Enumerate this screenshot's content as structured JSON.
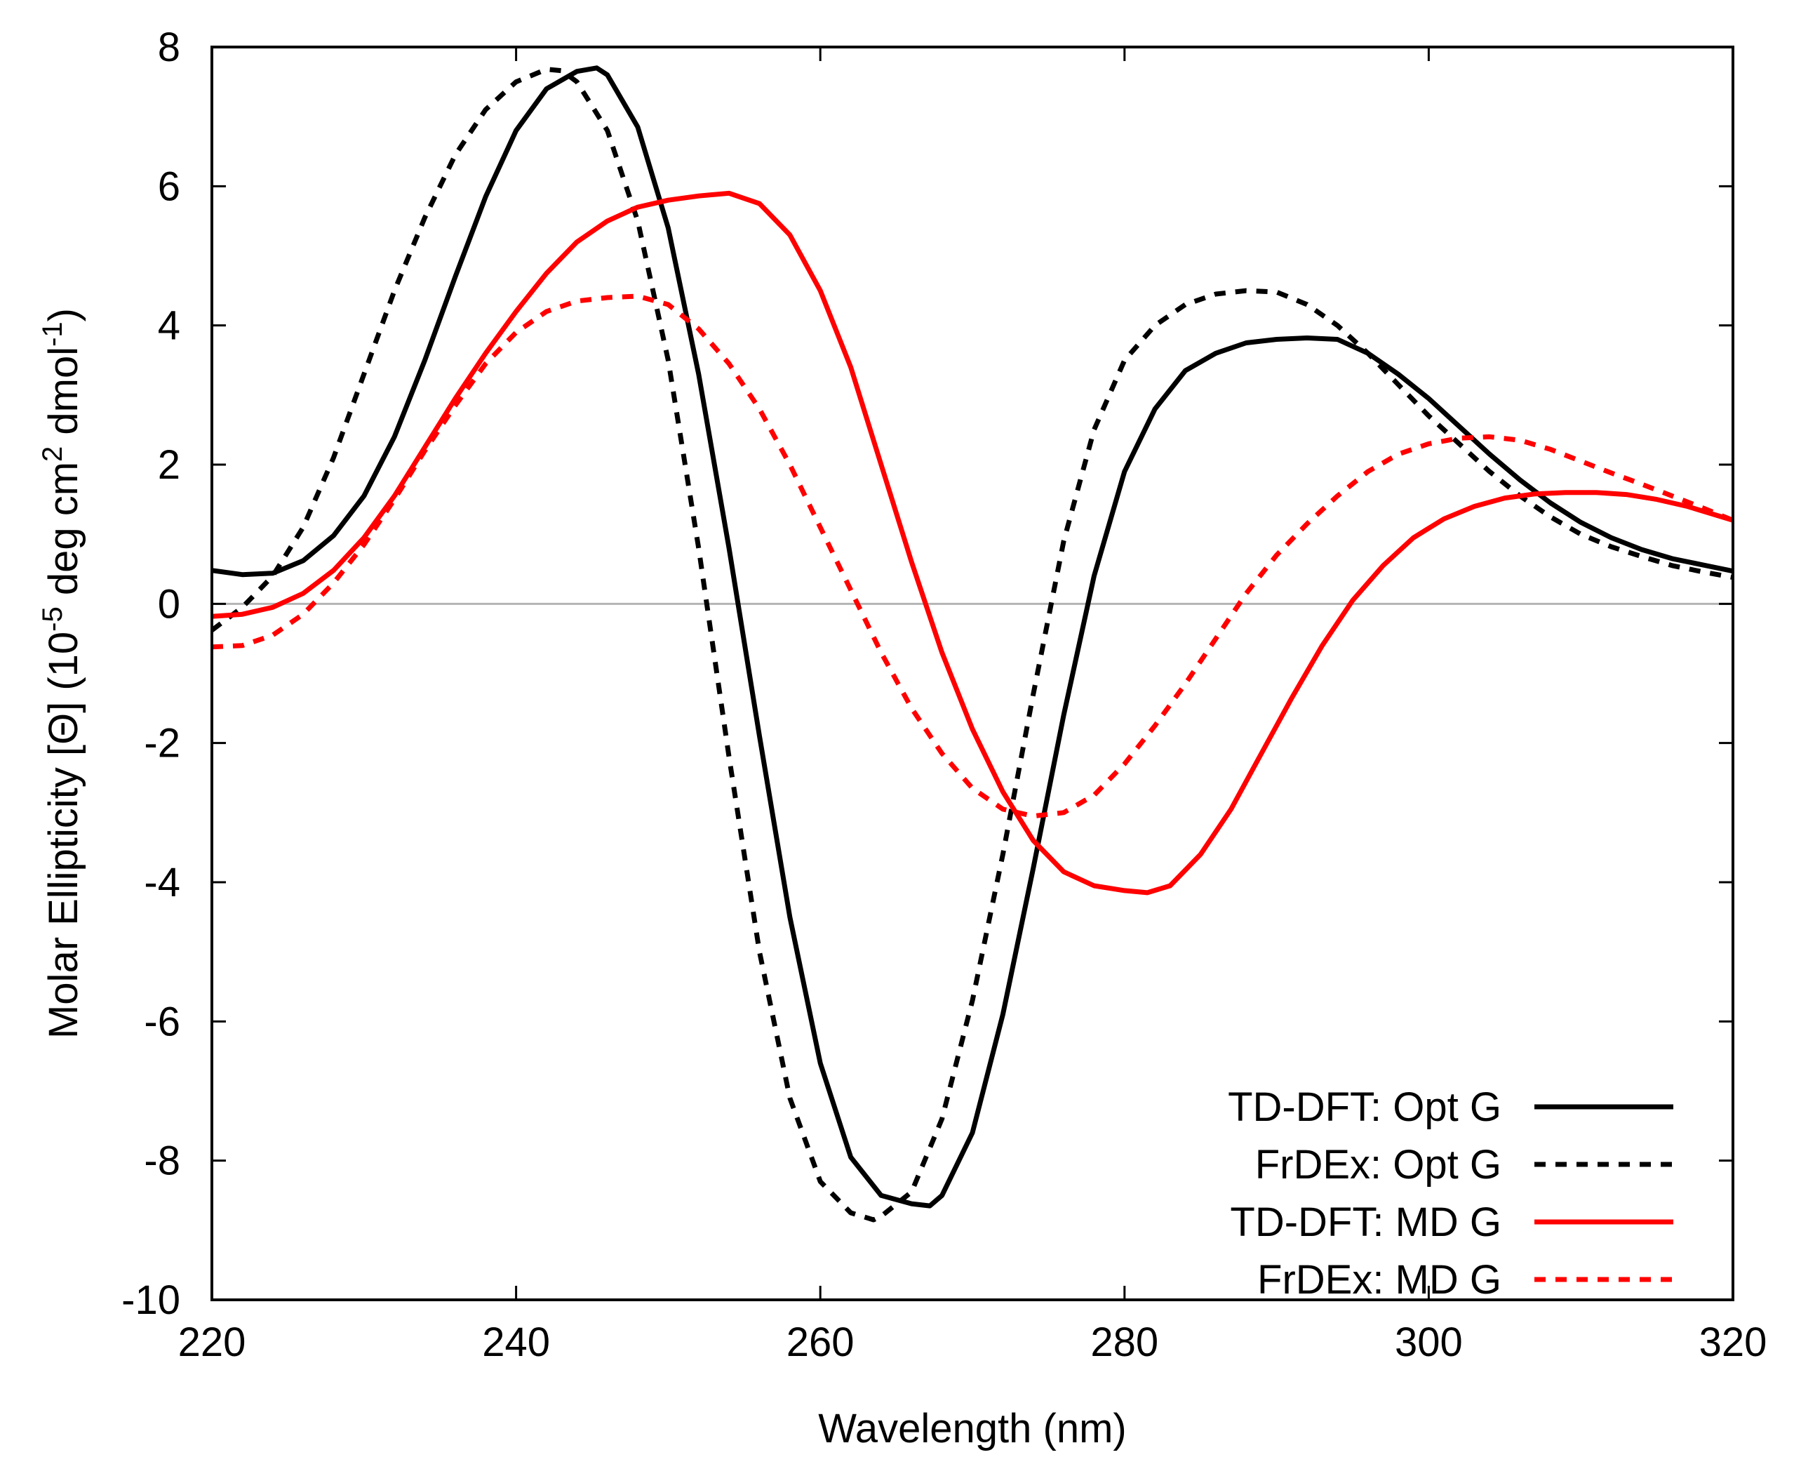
{
  "chart_data": {
    "type": "line",
    "title": "",
    "xlabel": "Wavelength (nm)",
    "ylabel": {
      "parts": [
        {
          "text": "Molar Ellipticity [Θ] (10",
          "sup": false
        },
        {
          "text": "-5",
          "sup": true
        },
        {
          "text": " deg cm",
          "sup": false
        },
        {
          "text": "2",
          "sup": true
        },
        {
          "text": " dmol",
          "sup": false
        },
        {
          "text": "-1",
          "sup": true
        },
        {
          "text": ")",
          "sup": false
        }
      ]
    },
    "xlim": [
      220,
      320
    ],
    "ylim": [
      -10,
      8
    ],
    "xticks": [
      220,
      240,
      260,
      280,
      300,
      320
    ],
    "yticks": [
      -10,
      -8,
      -6,
      -4,
      -2,
      0,
      2,
      4,
      6,
      8
    ],
    "zero_line": true,
    "legend_position": "bottom-right",
    "series": [
      {
        "name": "TD-DFT: Opt G",
        "color": "#000000",
        "dash": "solid",
        "points": [
          [
            220,
            0.48
          ],
          [
            222,
            0.42
          ],
          [
            224,
            0.44
          ],
          [
            226,
            0.62
          ],
          [
            228,
            0.98
          ],
          [
            230,
            1.55
          ],
          [
            232,
            2.4
          ],
          [
            234,
            3.5
          ],
          [
            236,
            4.7
          ],
          [
            238,
            5.85
          ],
          [
            240,
            6.8
          ],
          [
            242,
            7.4
          ],
          [
            244,
            7.65
          ],
          [
            245.3,
            7.7
          ],
          [
            246,
            7.6
          ],
          [
            248,
            6.85
          ],
          [
            250,
            5.4
          ],
          [
            252,
            3.3
          ],
          [
            254,
            0.8
          ],
          [
            256,
            -1.9
          ],
          [
            258,
            -4.5
          ],
          [
            260,
            -6.6
          ],
          [
            262,
            -7.95
          ],
          [
            264,
            -8.5
          ],
          [
            266,
            -8.62
          ],
          [
            267.2,
            -8.65
          ],
          [
            268,
            -8.5
          ],
          [
            270,
            -7.6
          ],
          [
            272,
            -5.9
          ],
          [
            274,
            -3.8
          ],
          [
            276,
            -1.6
          ],
          [
            278,
            0.4
          ],
          [
            280,
            1.9
          ],
          [
            282,
            2.8
          ],
          [
            284,
            3.35
          ],
          [
            286,
            3.6
          ],
          [
            288,
            3.75
          ],
          [
            290,
            3.8
          ],
          [
            292,
            3.82
          ],
          [
            294,
            3.8
          ],
          [
            296,
            3.6
          ],
          [
            298,
            3.3
          ],
          [
            300,
            2.95
          ],
          [
            302,
            2.55
          ],
          [
            304,
            2.15
          ],
          [
            306,
            1.78
          ],
          [
            308,
            1.45
          ],
          [
            310,
            1.17
          ],
          [
            312,
            0.95
          ],
          [
            314,
            0.78
          ],
          [
            316,
            0.65
          ],
          [
            318,
            0.56
          ],
          [
            320,
            0.47
          ]
        ]
      },
      {
        "name": "FrDEx: Opt G",
        "color": "#000000",
        "dash": "dashed",
        "points": [
          [
            220,
            -0.38
          ],
          [
            222,
            -0.05
          ],
          [
            224,
            0.4
          ],
          [
            226,
            1.1
          ],
          [
            228,
            2.1
          ],
          [
            230,
            3.3
          ],
          [
            232,
            4.5
          ],
          [
            234,
            5.55
          ],
          [
            236,
            6.45
          ],
          [
            238,
            7.1
          ],
          [
            240,
            7.5
          ],
          [
            242,
            7.68
          ],
          [
            243,
            7.66
          ],
          [
            244,
            7.5
          ],
          [
            246,
            6.8
          ],
          [
            248,
            5.5
          ],
          [
            250,
            3.5
          ],
          [
            252,
            0.8
          ],
          [
            254,
            -2.2
          ],
          [
            256,
            -5.0
          ],
          [
            258,
            -7.1
          ],
          [
            260,
            -8.3
          ],
          [
            262,
            -8.75
          ],
          [
            263.5,
            -8.85
          ],
          [
            264,
            -8.8
          ],
          [
            266,
            -8.45
          ],
          [
            268,
            -7.4
          ],
          [
            270,
            -5.7
          ],
          [
            272,
            -3.6
          ],
          [
            274,
            -1.3
          ],
          [
            276,
            0.9
          ],
          [
            278,
            2.5
          ],
          [
            280,
            3.5
          ],
          [
            282,
            4.0
          ],
          [
            284,
            4.3
          ],
          [
            286,
            4.45
          ],
          [
            288,
            4.5
          ],
          [
            290,
            4.48
          ],
          [
            292,
            4.3
          ],
          [
            294,
            4.0
          ],
          [
            296,
            3.6
          ],
          [
            298,
            3.15
          ],
          [
            300,
            2.7
          ],
          [
            302,
            2.3
          ],
          [
            304,
            1.9
          ],
          [
            306,
            1.55
          ],
          [
            308,
            1.25
          ],
          [
            310,
            1.0
          ],
          [
            312,
            0.82
          ],
          [
            314,
            0.68
          ],
          [
            316,
            0.55
          ],
          [
            318,
            0.46
          ],
          [
            320,
            0.38
          ]
        ]
      },
      {
        "name": "TD-DFT: MD G",
        "color": "#ff0000",
        "dash": "solid",
        "points": [
          [
            220,
            -0.18
          ],
          [
            222,
            -0.15
          ],
          [
            224,
            -0.05
          ],
          [
            226,
            0.15
          ],
          [
            228,
            0.48
          ],
          [
            230,
            0.95
          ],
          [
            232,
            1.55
          ],
          [
            234,
            2.25
          ],
          [
            236,
            2.95
          ],
          [
            238,
            3.6
          ],
          [
            240,
            4.2
          ],
          [
            242,
            4.75
          ],
          [
            244,
            5.2
          ],
          [
            246,
            5.5
          ],
          [
            248,
            5.7
          ],
          [
            250,
            5.8
          ],
          [
            252,
            5.86
          ],
          [
            254,
            5.9
          ],
          [
            256,
            5.75
          ],
          [
            258,
            5.3
          ],
          [
            260,
            4.5
          ],
          [
            262,
            3.4
          ],
          [
            264,
            2.0
          ],
          [
            266,
            0.6
          ],
          [
            268,
            -0.7
          ],
          [
            270,
            -1.8
          ],
          [
            272,
            -2.7
          ],
          [
            274,
            -3.4
          ],
          [
            276,
            -3.85
          ],
          [
            278,
            -4.05
          ],
          [
            280,
            -4.12
          ],
          [
            281.5,
            -4.15
          ],
          [
            283,
            -4.05
          ],
          [
            285,
            -3.6
          ],
          [
            287,
            -2.95
          ],
          [
            289,
            -2.15
          ],
          [
            291,
            -1.35
          ],
          [
            293,
            -0.6
          ],
          [
            295,
            0.05
          ],
          [
            297,
            0.55
          ],
          [
            299,
            0.95
          ],
          [
            301,
            1.22
          ],
          [
            303,
            1.4
          ],
          [
            305,
            1.52
          ],
          [
            307,
            1.58
          ],
          [
            309,
            1.6
          ],
          [
            311,
            1.6
          ],
          [
            313,
            1.57
          ],
          [
            315,
            1.5
          ],
          [
            317,
            1.4
          ],
          [
            320,
            1.2
          ]
        ]
      },
      {
        "name": "FrDEx: MD G",
        "color": "#ff0000",
        "dash": "dashed",
        "points": [
          [
            220,
            -0.62
          ],
          [
            222,
            -0.6
          ],
          [
            224,
            -0.45
          ],
          [
            226,
            -0.15
          ],
          [
            228,
            0.3
          ],
          [
            230,
            0.85
          ],
          [
            232,
            1.5
          ],
          [
            234,
            2.2
          ],
          [
            236,
            2.85
          ],
          [
            238,
            3.45
          ],
          [
            240,
            3.9
          ],
          [
            242,
            4.2
          ],
          [
            244,
            4.35
          ],
          [
            246,
            4.4
          ],
          [
            248,
            4.42
          ],
          [
            250,
            4.3
          ],
          [
            252,
            3.95
          ],
          [
            254,
            3.45
          ],
          [
            256,
            2.8
          ],
          [
            258,
            2.0
          ],
          [
            260,
            1.1
          ],
          [
            262,
            0.2
          ],
          [
            264,
            -0.7
          ],
          [
            266,
            -1.5
          ],
          [
            268,
            -2.15
          ],
          [
            270,
            -2.65
          ],
          [
            272,
            -2.95
          ],
          [
            274,
            -3.05
          ],
          [
            276,
            -3.0
          ],
          [
            278,
            -2.75
          ],
          [
            280,
            -2.3
          ],
          [
            282,
            -1.75
          ],
          [
            284,
            -1.15
          ],
          [
            286,
            -0.5
          ],
          [
            288,
            0.15
          ],
          [
            290,
            0.7
          ],
          [
            292,
            1.15
          ],
          [
            294,
            1.55
          ],
          [
            296,
            1.9
          ],
          [
            298,
            2.15
          ],
          [
            300,
            2.3
          ],
          [
            302,
            2.38
          ],
          [
            304,
            2.4
          ],
          [
            306,
            2.35
          ],
          [
            308,
            2.22
          ],
          [
            310,
            2.05
          ],
          [
            312,
            1.88
          ],
          [
            314,
            1.72
          ],
          [
            316,
            1.55
          ],
          [
            318,
            1.38
          ],
          [
            320,
            1.2
          ]
        ]
      }
    ]
  }
}
